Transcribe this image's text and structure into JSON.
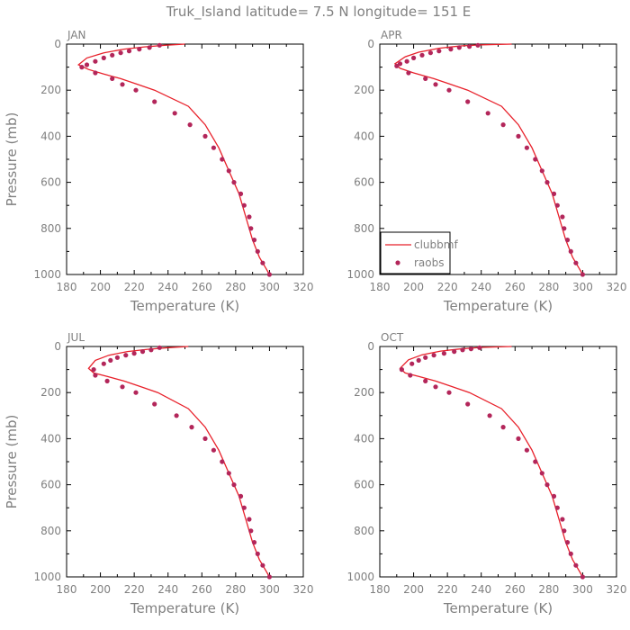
{
  "figure": {
    "title": "Truk_Island  latitude= 7.5 N longitude= 151 E"
  },
  "legend": {
    "model_label": "clubbmf",
    "obs_label": "raobs",
    "placement": "bottom-left of APR panel"
  },
  "colors": {
    "model_line": "#e8202a",
    "obs_marker": "#b3265a",
    "axis": "#000000",
    "text": "#808080"
  },
  "chart_data": [
    {
      "type": "line",
      "title": "JAN",
      "xlabel": "Temperature (K)",
      "ylabel": "Pressure (mb)",
      "xlim": [
        180,
        320
      ],
      "ylim": [
        1000,
        0
      ],
      "xticks": [
        180,
        200,
        220,
        240,
        260,
        280,
        300,
        320
      ],
      "yticks": [
        0,
        200,
        400,
        600,
        800,
        1000
      ],
      "series": [
        {
          "name": "clubbmf",
          "kind": "line",
          "points": [
            [
              250,
              0
            ],
            [
              238,
              5
            ],
            [
              226,
              12
            ],
            [
              214,
              22
            ],
            [
              202,
              38
            ],
            [
              192,
              60
            ],
            [
              187,
              90
            ],
            [
              193,
              110
            ],
            [
              202,
              130
            ],
            [
              212,
              150
            ],
            [
              222,
              175
            ],
            [
              232,
              200
            ],
            [
              252,
              270
            ],
            [
              262,
              350
            ],
            [
              270,
              450
            ],
            [
              276,
              550
            ],
            [
              282,
              650
            ],
            [
              286,
              750
            ],
            [
              290,
              850
            ],
            [
              294,
              925
            ],
            [
              298,
              975
            ],
            [
              300,
              1000
            ]
          ]
        },
        {
          "name": "raobs",
          "kind": "scatter",
          "points": [
            [
              235,
              5
            ],
            [
              229,
              15
            ],
            [
              223,
              22
            ],
            [
              217,
              30
            ],
            [
              212,
              38
            ],
            [
              207,
              48
            ],
            [
              202,
              60
            ],
            [
              197,
              75
            ],
            [
              192,
              90
            ],
            [
              189,
              100
            ],
            [
              197,
              125
            ],
            [
              207,
              150
            ],
            [
              213,
              175
            ],
            [
              221,
              200
            ],
            [
              232,
              250
            ],
            [
              244,
              300
            ],
            [
              253,
              350
            ],
            [
              262,
              400
            ],
            [
              267,
              450
            ],
            [
              272,
              500
            ],
            [
              276,
              550
            ],
            [
              279,
              600
            ],
            [
              283,
              650
            ],
            [
              285,
              700
            ],
            [
              288,
              750
            ],
            [
              289,
              800
            ],
            [
              291,
              850
            ],
            [
              293,
              900
            ],
            [
              296,
              950
            ],
            [
              300,
              1000
            ]
          ]
        }
      ]
    },
    {
      "type": "line",
      "title": "APR",
      "xlabel": "Temperature (K)",
      "ylabel": "",
      "xlim": [
        180,
        320
      ],
      "ylim": [
        1000,
        0
      ],
      "xticks": [
        180,
        200,
        220,
        240,
        260,
        280,
        300,
        320
      ],
      "yticks": [
        0,
        200,
        400,
        600,
        800,
        1000
      ],
      "series": [
        {
          "name": "clubbmf",
          "kind": "line",
          "points": [
            [
              258,
              0
            ],
            [
              240,
              3
            ],
            [
              228,
              8
            ],
            [
              215,
              18
            ],
            [
              203,
              35
            ],
            [
              195,
              55
            ],
            [
              189,
              85
            ],
            [
              192,
              105
            ],
            [
              200,
              125
            ],
            [
              212,
              150
            ],
            [
              222,
              175
            ],
            [
              232,
              200
            ],
            [
              252,
              270
            ],
            [
              262,
              350
            ],
            [
              270,
              450
            ],
            [
              276,
              550
            ],
            [
              282,
              650
            ],
            [
              286,
              750
            ],
            [
              290,
              850
            ],
            [
              294,
              925
            ],
            [
              298,
              975
            ],
            [
              300,
              1000
            ]
          ]
        },
        {
          "name": "raobs",
          "kind": "scatter",
          "points": [
            [
              238,
              5
            ],
            [
              233,
              10
            ],
            [
              227,
              15
            ],
            [
              222,
              22
            ],
            [
              215,
              30
            ],
            [
              210,
              38
            ],
            [
              205,
              48
            ],
            [
              200,
              60
            ],
            [
              196,
              75
            ],
            [
              192,
              85
            ],
            [
              190,
              95
            ],
            [
              197,
              125
            ],
            [
              207,
              150
            ],
            [
              213,
              175
            ],
            [
              221,
              200
            ],
            [
              232,
              250
            ],
            [
              244,
              300
            ],
            [
              253,
              350
            ],
            [
              262,
              400
            ],
            [
              267,
              450
            ],
            [
              272,
              500
            ],
            [
              276,
              550
            ],
            [
              279,
              600
            ],
            [
              283,
              650
            ],
            [
              285,
              700
            ],
            [
              288,
              750
            ],
            [
              289,
              800
            ],
            [
              291,
              850
            ],
            [
              293,
              900
            ],
            [
              296,
              950
            ],
            [
              300,
              1000
            ]
          ]
        }
      ]
    },
    {
      "type": "line",
      "title": "JUL",
      "xlabel": "Temperature (K)",
      "ylabel": "Pressure (mb)",
      "xlim": [
        180,
        320
      ],
      "ylim": [
        1000,
        0
      ],
      "xticks": [
        180,
        200,
        220,
        240,
        260,
        280,
        300,
        320
      ],
      "yticks": [
        0,
        200,
        400,
        600,
        800,
        1000
      ],
      "series": [
        {
          "name": "clubbmf",
          "kind": "line",
          "points": [
            [
              252,
              0
            ],
            [
              240,
              5
            ],
            [
              228,
              12
            ],
            [
              216,
              22
            ],
            [
              205,
              38
            ],
            [
              197,
              60
            ],
            [
              193,
              95
            ],
            [
              196,
              115
            ],
            [
              204,
              130
            ],
            [
              214,
              150
            ],
            [
              224,
              175
            ],
            [
              234,
              200
            ],
            [
              252,
              270
            ],
            [
              262,
              350
            ],
            [
              270,
              450
            ],
            [
              276,
              550
            ],
            [
              282,
              650
            ],
            [
              286,
              750
            ],
            [
              290,
              850
            ],
            [
              294,
              925
            ],
            [
              298,
              975
            ],
            [
              300,
              1000
            ]
          ]
        },
        {
          "name": "raobs",
          "kind": "scatter",
          "points": [
            [
              235,
              5
            ],
            [
              230,
              15
            ],
            [
              225,
              22
            ],
            [
              220,
              30
            ],
            [
              215,
              38
            ],
            [
              210,
              48
            ],
            [
              206,
              60
            ],
            [
              202,
              75
            ],
            [
              196,
              100
            ],
            [
              197,
              125
            ],
            [
              204,
              150
            ],
            [
              213,
              175
            ],
            [
              221,
              200
            ],
            [
              232,
              250
            ],
            [
              245,
              300
            ],
            [
              254,
              350
            ],
            [
              262,
              400
            ],
            [
              267,
              450
            ],
            [
              272,
              500
            ],
            [
              276,
              550
            ],
            [
              279,
              600
            ],
            [
              283,
              650
            ],
            [
              285,
              700
            ],
            [
              288,
              750
            ],
            [
              289,
              800
            ],
            [
              291,
              850
            ],
            [
              293,
              900
            ],
            [
              296,
              950
            ],
            [
              300,
              1000
            ]
          ]
        }
      ]
    },
    {
      "type": "line",
      "title": "OCT",
      "xlabel": "Temperature (K)",
      "ylabel": "",
      "xlim": [
        180,
        320
      ],
      "ylim": [
        1000,
        0
      ],
      "xticks": [
        180,
        200,
        220,
        240,
        260,
        280,
        300,
        320
      ],
      "yticks": [
        0,
        200,
        400,
        600,
        800,
        1000
      ],
      "series": [
        {
          "name": "clubbmf",
          "kind": "line",
          "points": [
            [
              258,
              0
            ],
            [
              240,
              4
            ],
            [
              228,
              10
            ],
            [
              216,
              20
            ],
            [
              205,
              36
            ],
            [
              197,
              58
            ],
            [
              192,
              95
            ],
            [
              195,
              115
            ],
            [
              203,
              130
            ],
            [
              213,
              150
            ],
            [
              223,
              175
            ],
            [
              233,
              200
            ],
            [
              252,
              270
            ],
            [
              262,
              350
            ],
            [
              270,
              450
            ],
            [
              276,
              550
            ],
            [
              282,
              650
            ],
            [
              286,
              750
            ],
            [
              290,
              850
            ],
            [
              294,
              925
            ],
            [
              298,
              975
            ],
            [
              300,
              1000
            ]
          ]
        },
        {
          "name": "raobs",
          "kind": "scatter",
          "points": [
            [
              239,
              5
            ],
            [
              234,
              10
            ],
            [
              229,
              15
            ],
            [
              224,
              22
            ],
            [
              218,
              30
            ],
            [
              212,
              38
            ],
            [
              207,
              48
            ],
            [
              203,
              60
            ],
            [
              199,
              75
            ],
            [
              193,
              100
            ],
            [
              198,
              125
            ],
            [
              207,
              150
            ],
            [
              213,
              175
            ],
            [
              221,
              200
            ],
            [
              232,
              250
            ],
            [
              245,
              300
            ],
            [
              253,
              350
            ],
            [
              262,
              400
            ],
            [
              267,
              450
            ],
            [
              272,
              500
            ],
            [
              276,
              550
            ],
            [
              279,
              600
            ],
            [
              283,
              650
            ],
            [
              285,
              700
            ],
            [
              288,
              750
            ],
            [
              289,
              800
            ],
            [
              291,
              850
            ],
            [
              293,
              900
            ],
            [
              296,
              950
            ],
            [
              300,
              1000
            ]
          ]
        }
      ]
    }
  ]
}
